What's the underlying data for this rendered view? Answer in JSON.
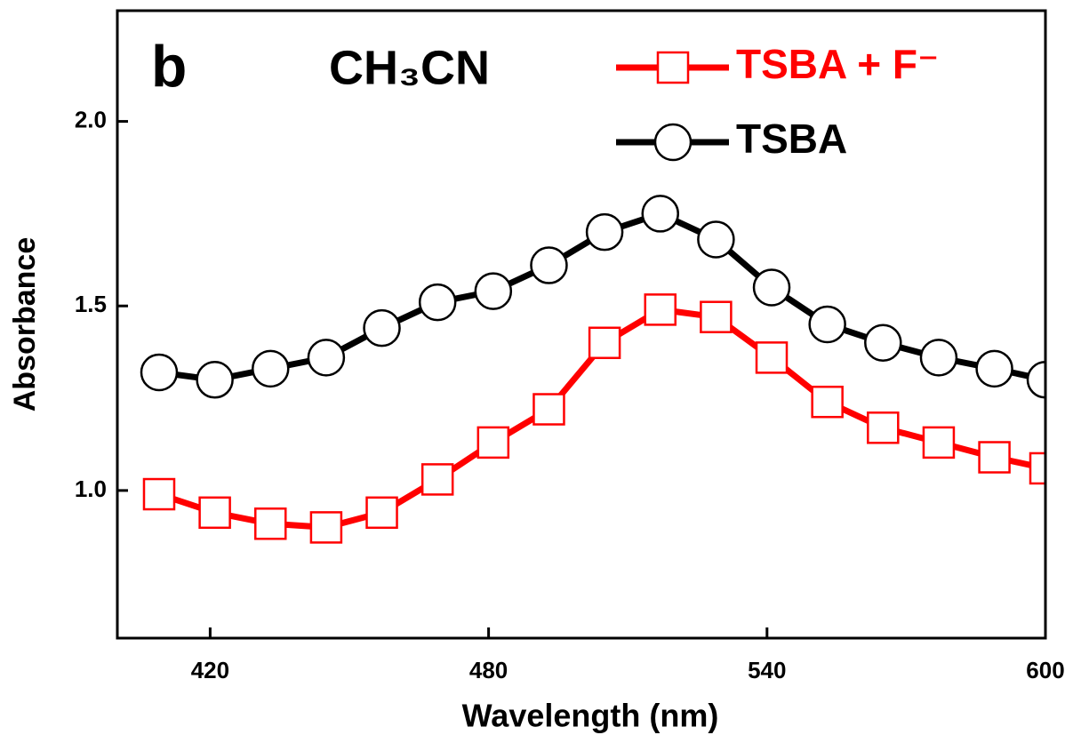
{
  "chart_data": {
    "type": "line",
    "x_label": "Wavelength (nm)",
    "y_label": "Absorbance",
    "annotations": [
      "b",
      "CH₃CN"
    ],
    "x": [
      409,
      421,
      433,
      445,
      457,
      469,
      481,
      493,
      505,
      517,
      529,
      541,
      553,
      565,
      577,
      589,
      600
    ],
    "series": [
      {
        "name": "TSBA + F⁻",
        "color": "#ff0000",
        "marker": "square",
        "values": [
          0.99,
          0.94,
          0.91,
          0.9,
          0.94,
          1.03,
          1.13,
          1.22,
          1.4,
          1.49,
          1.47,
          1.36,
          1.24,
          1.17,
          1.13,
          1.09,
          1.06
        ]
      },
      {
        "name": "TSBA",
        "color": "#000000",
        "marker": "circle",
        "values": [
          1.32,
          1.3,
          1.33,
          1.36,
          1.44,
          1.51,
          1.54,
          1.61,
          1.7,
          1.75,
          1.68,
          1.55,
          1.45,
          1.4,
          1.36,
          1.33,
          1.3
        ]
      }
    ],
    "xlim": [
      400,
      600
    ],
    "xticks": [
      420,
      480,
      540,
      600
    ],
    "ylim": [
      0.6,
      2.3
    ],
    "yticks": [
      {
        "value": 1,
        "label": "1.0"
      },
      1.5,
      {
        "value": 2,
        "label": "2.0"
      }
    ],
    "legend": "top-right"
  }
}
